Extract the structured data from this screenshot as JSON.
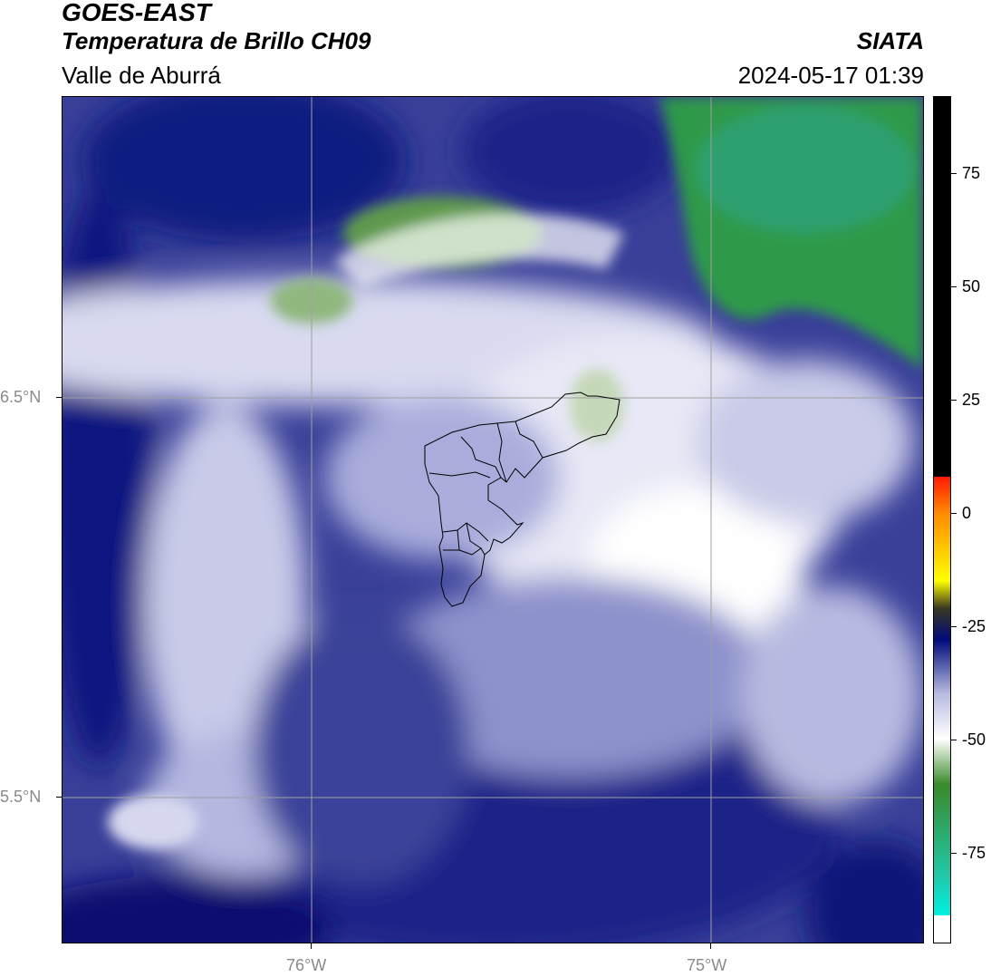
{
  "header": {
    "satellite": "GOES-EAST",
    "product": "Temperatura de Brillo CH09",
    "region": "Valle de Aburrá",
    "organization": "SIATA",
    "datetime": "2024-05-17 01:39"
  },
  "map": {
    "lat_labels": [
      "6.5°N",
      "5.5°N"
    ],
    "lon_labels": [
      "76°W",
      "75°W"
    ],
    "gridline_color": "#a0a0a0",
    "boundary_color": "#000000"
  },
  "colorbar": {
    "ticks": [
      75,
      50,
      25,
      0,
      -25,
      -50,
      -75
    ],
    "range": [
      -95,
      92
    ],
    "colors": {
      "black": "#000000",
      "red": "#ff1a00",
      "orange": "#ff8a00",
      "yellow": "#ffff00",
      "dark_olive": "#3a3a20",
      "navy": "#000a7a",
      "lavender": "#b8bbe0",
      "white": "#ffffff",
      "green": "#3a8a2a",
      "teal": "#20c8a8",
      "cyan": "#00f0e0"
    }
  }
}
